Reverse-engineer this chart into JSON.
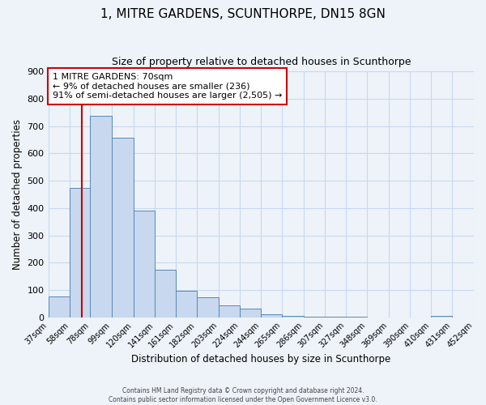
{
  "title": "1, MITRE GARDENS, SCUNTHORPE, DN15 8GN",
  "subtitle": "Size of property relative to detached houses in Scunthorpe",
  "xlabel": "Distribution of detached houses by size in Scunthorpe",
  "ylabel": "Number of detached properties",
  "bar_values": [
    75,
    475,
    737,
    657,
    390,
    175,
    97,
    73,
    45,
    32,
    10,
    5,
    3,
    2,
    1,
    0,
    0,
    0,
    5,
    0,
    5
  ],
  "bar_edges": [
    37,
    58,
    78,
    99,
    120,
    141,
    161,
    182,
    203,
    224,
    244,
    265,
    286,
    307,
    327,
    348,
    369,
    390,
    410,
    431,
    452
  ],
  "bar_labels": [
    "37sqm",
    "58sqm",
    "78sqm",
    "99sqm",
    "120sqm",
    "141sqm",
    "161sqm",
    "182sqm",
    "203sqm",
    "224sqm",
    "244sqm",
    "265sqm",
    "286sqm",
    "307sqm",
    "327sqm",
    "348sqm",
    "369sqm",
    "390sqm",
    "410sqm",
    "431sqm",
    "452sqm"
  ],
  "bar_color": "#c8d8ee",
  "bar_edge_color": "#5588bb",
  "grid_color": "#c8d8ee",
  "background_color": "#eef3f9",
  "plot_bg_color": "#eef3f9",
  "vertical_line_x": 70,
  "vertical_line_color": "#cc0000",
  "ylim": [
    0,
    900
  ],
  "yticks": [
    0,
    100,
    200,
    300,
    400,
    500,
    600,
    700,
    800,
    900
  ],
  "annotation_title": "1 MITRE GARDENS: 70sqm",
  "annotation_line1": "← 9% of detached houses are smaller (236)",
  "annotation_line2": "91% of semi-detached houses are larger (2,505) →",
  "annotation_box_color": "#ffffff",
  "annotation_border_color": "#cc0000",
  "footer_line1": "Contains HM Land Registry data © Crown copyright and database right 2024.",
  "footer_line2": "Contains public sector information licensed under the Open Government Licence v3.0."
}
